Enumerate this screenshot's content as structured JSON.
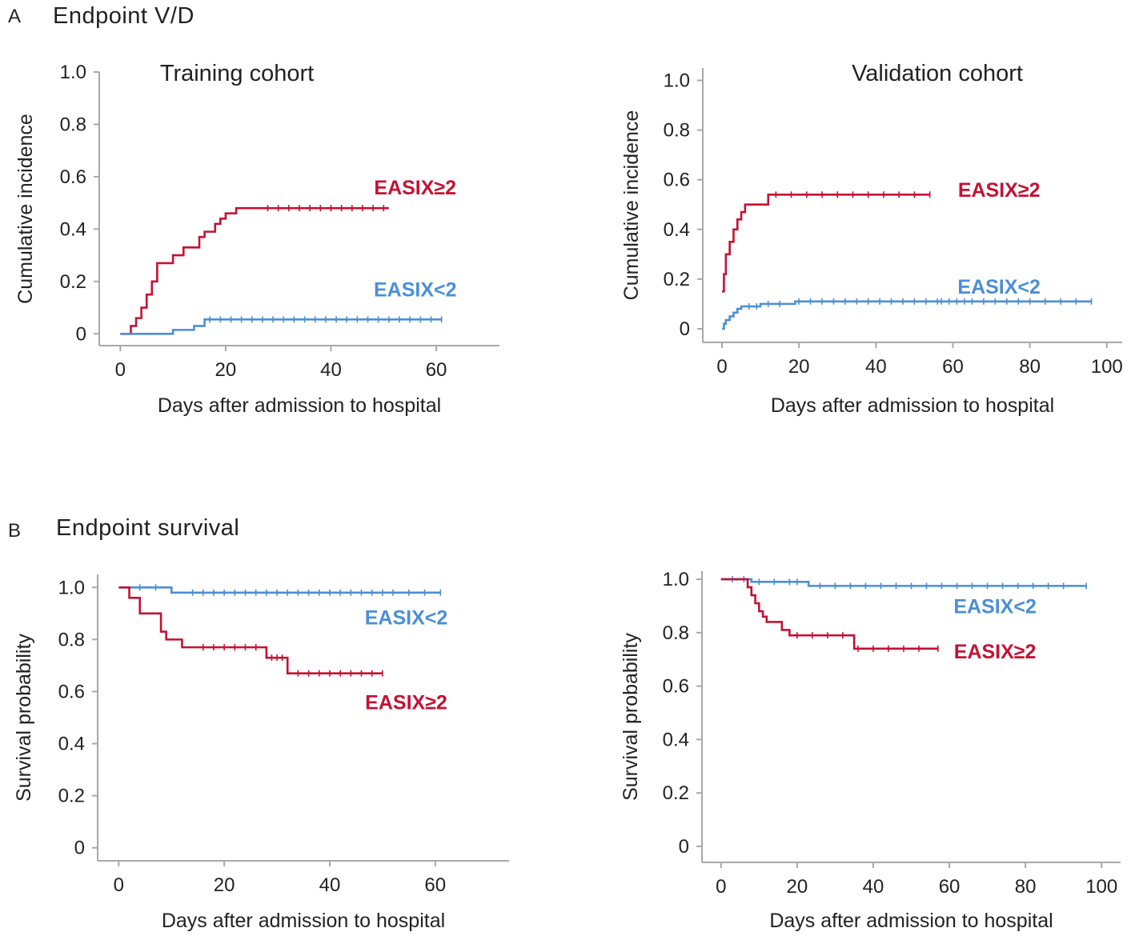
{
  "figure": {
    "panel_a_letter": "A",
    "panel_a_title": "Endpoint V/D",
    "panel_b_letter": "B",
    "panel_b_title": "Endpoint survival"
  },
  "colors": {
    "high": "#c41233",
    "low": "#4a8fd6",
    "axis": "#a8a8a8",
    "text": "#222222"
  },
  "chart_data": [
    {
      "id": "a-training",
      "type": "line",
      "step": true,
      "title": "Training cohort",
      "xlabel": "Days after admission to hospital",
      "ylabel": "Cumulative incidence",
      "xlim": [
        -4,
        72
      ],
      "ylim": [
        -0.045,
        1.0
      ],
      "xticks": [
        0,
        20,
        40,
        60
      ],
      "xtick_labels": [
        "0",
        "20",
        "40",
        "60"
      ],
      "yticks": [
        0,
        0.2,
        0.4,
        0.6,
        0.8,
        1.0
      ],
      "ytick_labels": [
        "0",
        "0.2",
        "0.4",
        "0.6",
        "0.8",
        "1.0"
      ],
      "series": [
        {
          "name": "EASIX≥2",
          "color_key": "high",
          "x": [
            0,
            2,
            3,
            4,
            5,
            6,
            7,
            10,
            12,
            15,
            16,
            18,
            19,
            20,
            22,
            51
          ],
          "y": [
            0,
            0.03,
            0.06,
            0.1,
            0.15,
            0.2,
            0.27,
            0.3,
            0.33,
            0.37,
            0.39,
            0.42,
            0.44,
            0.46,
            0.48,
            0.48
          ],
          "censor_x": [
            28,
            30,
            32,
            34,
            36,
            38,
            40,
            42,
            44,
            46,
            48,
            50
          ]
        },
        {
          "name": "EASIX<2",
          "color_key": "low",
          "x": [
            0,
            10,
            14,
            16,
            61
          ],
          "y": [
            0,
            0.015,
            0.03,
            0.055,
            0.055
          ],
          "censor_x": [
            17,
            19,
            21,
            23,
            25,
            27,
            29,
            31,
            33,
            35,
            37,
            39,
            41,
            43,
            45,
            47,
            49,
            51,
            53,
            55,
            57,
            59,
            61
          ]
        }
      ],
      "labels": [
        {
          "text": "EASIX≥2",
          "color_key": "high",
          "x": 56,
          "y": 0.56
        },
        {
          "text": "EASIX<2",
          "color_key": "low",
          "x": 56,
          "y": 0.17
        }
      ]
    },
    {
      "id": "a-validation",
      "type": "line",
      "step": true,
      "title": "Validation cohort",
      "xlabel": "Days after admission to hospital",
      "ylabel": "Cumulative incidence",
      "xlim": [
        -5,
        104
      ],
      "ylim": [
        -0.055,
        1.05
      ],
      "xticks": [
        0,
        20,
        40,
        60,
        80,
        100
      ],
      "xtick_labels": [
        "0",
        "20",
        "40",
        "60",
        "80",
        "100"
      ],
      "yticks": [
        0,
        0.2,
        0.4,
        0.6,
        0.8,
        1.0
      ],
      "ytick_labels": [
        "0",
        "0.2",
        "0.4",
        "0.6",
        "0.8",
        "1.0"
      ],
      "series": [
        {
          "name": "EASIX≥2",
          "color_key": "high",
          "x": [
            0,
            0.5,
            1,
            2,
            3,
            4,
            5,
            6,
            7,
            12,
            54
          ],
          "y": [
            0.15,
            0.22,
            0.3,
            0.35,
            0.4,
            0.44,
            0.47,
            0.5,
            0.5,
            0.54,
            0.54
          ],
          "censor_x": [
            14,
            18,
            22,
            26,
            30,
            34,
            38,
            42,
            46,
            50,
            54
          ]
        },
        {
          "name": "EASIX<2",
          "color_key": "low",
          "x": [
            0,
            0.5,
            1,
            2,
            3,
            4,
            5,
            10,
            19,
            96
          ],
          "y": [
            0,
            0.02,
            0.035,
            0.05,
            0.065,
            0.08,
            0.09,
            0.1,
            0.11,
            0.11
          ],
          "censor_x": [
            7,
            9,
            12,
            15,
            20,
            23,
            26,
            29,
            32,
            35,
            38,
            41,
            44,
            47,
            50,
            53,
            56,
            59,
            57,
            61,
            63,
            65,
            68,
            71,
            74,
            77,
            80,
            84,
            88,
            92,
            96
          ]
        }
      ],
      "labels": [
        {
          "text": "EASIX≥2",
          "color_key": "high",
          "x": 72,
          "y": 0.56
        },
        {
          "text": "EASIX<2",
          "color_key": "low",
          "x": 72,
          "y": 0.17
        }
      ]
    },
    {
      "id": "b-training",
      "type": "line",
      "step": true,
      "title": "",
      "xlabel": "Days after admission to hospital",
      "ylabel": "Survival probability",
      "xlim": [
        -4,
        74
      ],
      "ylim": [
        -0.05,
        1.05
      ],
      "xticks": [
        0,
        20,
        40,
        60
      ],
      "xtick_labels": [
        "0",
        "20",
        "40",
        "60"
      ],
      "yticks": [
        0,
        0.2,
        0.4,
        0.6,
        0.8,
        1.0
      ],
      "ytick_labels": [
        "0",
        "0.2",
        "0.4",
        "0.6",
        "0.8",
        "1.0"
      ],
      "series": [
        {
          "name": "EASIX<2",
          "color_key": "low",
          "x": [
            0,
            10,
            61
          ],
          "y": [
            1.0,
            0.98,
            0.98
          ],
          "censor_x": [
            4,
            7,
            14,
            16,
            18,
            20,
            22,
            24,
            26,
            28,
            30,
            32,
            34,
            36,
            38,
            40,
            42,
            44,
            46,
            48,
            50,
            52,
            55,
            58,
            61
          ]
        },
        {
          "name": "EASIX≥2",
          "color_key": "high",
          "x": [
            0,
            2,
            4,
            8,
            9,
            12,
            28,
            32,
            50
          ],
          "y": [
            1.0,
            0.96,
            0.9,
            0.83,
            0.8,
            0.77,
            0.73,
            0.67,
            0.67
          ],
          "censor_x": [
            16,
            18,
            20,
            22,
            24,
            26,
            29,
            30,
            31,
            34,
            36,
            38,
            40,
            42,
            44,
            46,
            48,
            50
          ]
        }
      ],
      "labels": [
        {
          "text": "EASIX<2",
          "color_key": "low",
          "x": 54.5,
          "y": 0.885
        },
        {
          "text": "EASIX≥2",
          "color_key": "high",
          "x": 54.5,
          "y": 0.56
        }
      ]
    },
    {
      "id": "b-validation",
      "type": "line",
      "step": true,
      "title": "",
      "xlabel": "Days after admission to hospital",
      "ylabel": "Survival probability",
      "xlim": [
        -5,
        105
      ],
      "ylim": [
        -0.06,
        1.03
      ],
      "xticks": [
        0,
        20,
        40,
        60,
        80,
        100
      ],
      "xtick_labels": [
        "0",
        "20",
        "40",
        "60",
        "80",
        "100"
      ],
      "yticks": [
        0,
        0.2,
        0.4,
        0.6,
        0.8,
        1.0
      ],
      "ytick_labels": [
        "0",
        "0.2",
        "0.4",
        "0.6",
        "0.8",
        "1.0"
      ],
      "series": [
        {
          "name": "EASIX<2",
          "color_key": "low",
          "x": [
            0,
            8,
            23,
            96
          ],
          "y": [
            1.0,
            0.99,
            0.975,
            0.975
          ],
          "censor_x": [
            3,
            6,
            10,
            14,
            18,
            20,
            26,
            30,
            34,
            38,
            42,
            46,
            50,
            54,
            58,
            62,
            66,
            70,
            74,
            78,
            82,
            86,
            90,
            96
          ]
        },
        {
          "name": "EASIX≥2",
          "color_key": "high",
          "x": [
            0,
            7,
            8,
            9,
            10,
            11,
            12,
            16,
            18,
            35,
            57
          ],
          "y": [
            1.0,
            0.97,
            0.94,
            0.91,
            0.88,
            0.86,
            0.84,
            0.81,
            0.79,
            0.74,
            0.74
          ],
          "censor_x": [
            20,
            24,
            28,
            32,
            36,
            40,
            44,
            48,
            52,
            57
          ]
        }
      ],
      "labels": [
        {
          "text": "EASIX<2",
          "color_key": "low",
          "x": 72,
          "y": 0.9
        },
        {
          "text": "EASIX≥2",
          "color_key": "high",
          "x": 72,
          "y": 0.73
        }
      ]
    }
  ]
}
